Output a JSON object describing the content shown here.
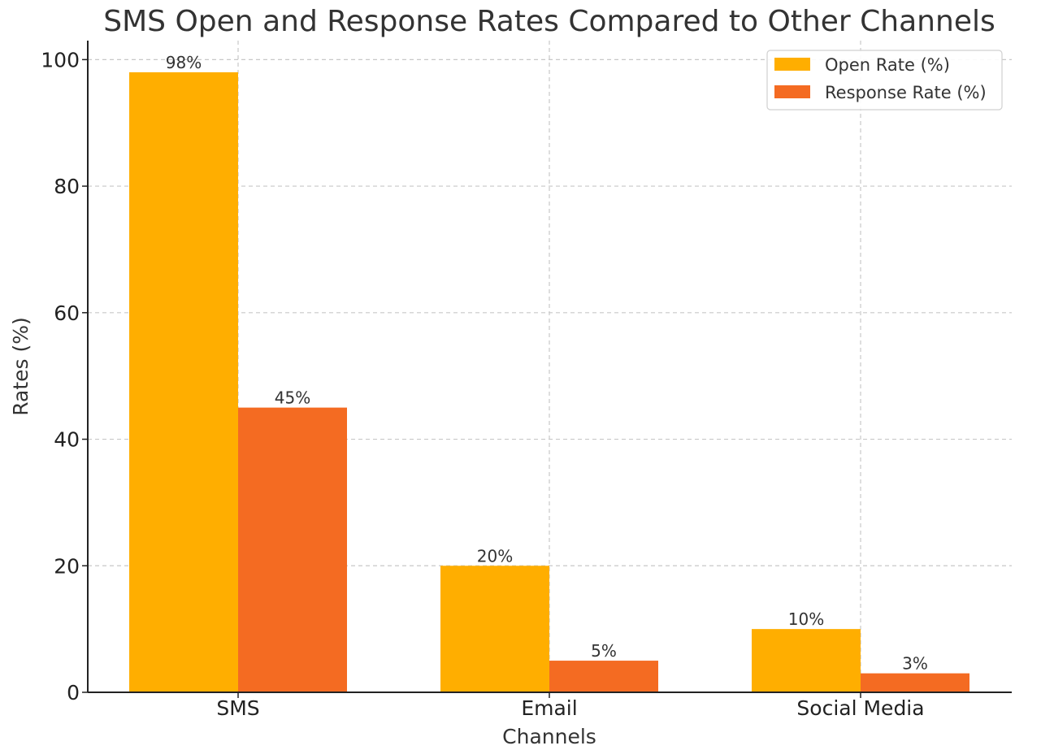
{
  "chart_data": {
    "type": "bar",
    "title": "SMS Open and Response Rates Compared to Other Channels",
    "xlabel": "Channels",
    "ylabel": "Rates (%)",
    "categories": [
      "SMS",
      "Email",
      "Social Media"
    ],
    "series": [
      {
        "name": "Open Rate (%)",
        "values": [
          98,
          20,
          10
        ],
        "labels": [
          "98%",
          "20%",
          "10%"
        ],
        "color": "#FFAE00"
      },
      {
        "name": "Response Rate (%)",
        "values": [
          45,
          5,
          3
        ],
        "labels": [
          "45%",
          "5%",
          "3%"
        ],
        "color": "#F46B22"
      }
    ],
    "ylim": [
      0,
      103
    ],
    "yticks": [
      0,
      20,
      40,
      60,
      80,
      100
    ],
    "ytick_labels": [
      "0",
      "20",
      "40",
      "60",
      "80",
      "100"
    ],
    "grid": true,
    "legend_position": "top-right"
  }
}
